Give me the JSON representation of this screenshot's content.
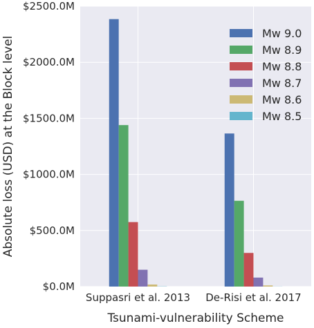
{
  "chart_data": {
    "type": "bar",
    "xlabel": "Tsunami-vulnerability Scheme",
    "ylabel": "Absolute loss (USD) at the Block level",
    "categories": [
      "Suppasri et al. 2013",
      "De-Risi et al. 2017"
    ],
    "ylim": [
      0,
      2500
    ],
    "y_ticks": [
      0,
      500,
      1000,
      1500,
      2000,
      2500
    ],
    "y_tick_labels": [
      "$0.0M",
      "$500.0M",
      "$1000.0M",
      "$1500.0M",
      "$2000.0M",
      "$2500.0M"
    ],
    "grid": true,
    "legend_position": "top-right",
    "series": [
      {
        "name": "Mw 9.0",
        "color": "#4c72b0",
        "values": [
          2385,
          1365
        ]
      },
      {
        "name": "Mw 8.9",
        "color": "#55a868",
        "values": [
          1440,
          765
        ]
      },
      {
        "name": "Mw 8.8",
        "color": "#c44e52",
        "values": [
          575,
          300
        ]
      },
      {
        "name": "Mw 8.7",
        "color": "#8172b2",
        "values": [
          150,
          80
        ]
      },
      {
        "name": "Mw 8.6",
        "color": "#ccb974",
        "values": [
          18,
          10
        ]
      },
      {
        "name": "Mw 8.5",
        "color": "#64b5cd",
        "values": [
          2,
          1
        ]
      }
    ]
  }
}
